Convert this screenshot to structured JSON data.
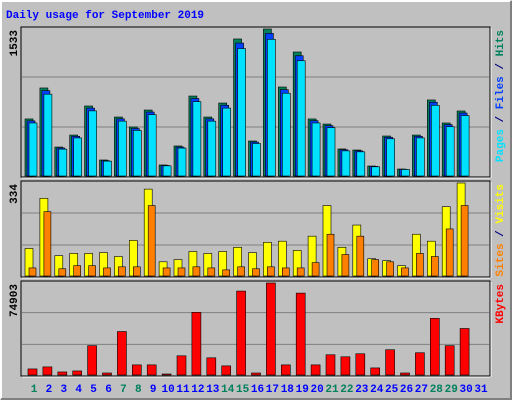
{
  "chart_data": [
    {
      "type": "bar",
      "title": "Daily usage for September 2019",
      "title_color": "#0000ff",
      "legend_separator": " / ",
      "ylim": [
        0,
        1533
      ],
      "yticks": [
        1533
      ],
      "series": [
        {
          "name": "Hits",
          "color": "#00805c",
          "values": [
            595,
            918,
            302,
            427,
            730,
            167,
            615,
            511,
            688,
            115,
            313,
            834,
            615,
            761,
            1429,
            365,
            1533,
            928,
            1293,
            595,
            542,
            282,
            271,
            104,
            417,
            73,
            427,
            793,
            553,
            678,
            0
          ]
        },
        {
          "name": "Files",
          "color": "#0040ff",
          "values": [
            575,
            890,
            292,
            414,
            708,
            160,
            596,
            495,
            667,
            110,
            302,
            808,
            596,
            738,
            1386,
            354,
            1487,
            900,
            1254,
            577,
            525,
            273,
            262,
            100,
            404,
            70,
            414,
            769,
            536,
            657,
            0
          ]
        },
        {
          "name": "Pages",
          "color": "#00e0ff",
          "values": [
            553,
            853,
            280,
            397,
            679,
            155,
            572,
            475,
            640,
            106,
            291,
            775,
            572,
            708,
            1329,
            339,
            1425,
            863,
            1202,
            553,
            504,
            262,
            252,
            96,
            388,
            68,
            397,
            737,
            514,
            630,
            0
          ]
        }
      ]
    },
    {
      "type": "bar",
      "legend_separator": " / ",
      "ylim": [
        0,
        334
      ],
      "yticks": [
        334
      ],
      "series": [
        {
          "name": "Visits",
          "color": "#ffff00",
          "values": [
            99,
            279,
            73,
            81,
            81,
            84,
            70,
            128,
            312,
            51,
            59,
            88,
            81,
            88,
            103,
            84,
            121,
            125,
            92,
            143,
            253,
            103,
            183,
            62,
            55,
            37,
            150,
            125,
            249,
            334,
            0
          ]
        },
        {
          "name": "Sites",
          "color": "#ff8000",
          "values": [
            29,
            231,
            26,
            37,
            37,
            29,
            33,
            33,
            253,
            29,
            29,
            33,
            29,
            22,
            33,
            26,
            33,
            29,
            29,
            48,
            150,
            77,
            143,
            59,
            51,
            29,
            81,
            70,
            169,
            253,
            0
          ]
        }
      ]
    },
    {
      "type": "bar",
      "ylim": [
        0,
        74903
      ],
      "yticks": [
        74903
      ],
      "categories": [
        "1",
        "2",
        "3",
        "4",
        "5",
        "6",
        "7",
        "8",
        "9",
        "10",
        "11",
        "12",
        "13",
        "14",
        "15",
        "16",
        "17",
        "18",
        "19",
        "20",
        "21",
        "22",
        "23",
        "24",
        "25",
        "26",
        "27",
        "28",
        "29",
        "30",
        "31"
      ],
      "category_colors": [
        "#00805c",
        "#0000ff",
        "#0000ff",
        "#0000ff",
        "#0000ff",
        "#0000ff",
        "#00805c",
        "#00805c",
        "#0000ff",
        "#0000ff",
        "#0000ff",
        "#0000ff",
        "#0000ff",
        "#00805c",
        "#00805c",
        "#0000ff",
        "#0000ff",
        "#0000ff",
        "#0000ff",
        "#0000ff",
        "#00805c",
        "#00805c",
        "#0000ff",
        "#0000ff",
        "#0000ff",
        "#0000ff",
        "#0000ff",
        "#00805c",
        "#00805c",
        "#0000ff",
        "#0000ff"
      ],
      "series": [
        {
          "name": "KBytes",
          "color": "#ff0000",
          "values": [
            4938,
            6585,
            2469,
            3292,
            23870,
            1646,
            35394,
            8231,
            8231,
            823,
            15640,
            51035,
            13993,
            7408,
            68322,
            1646,
            74903,
            8231,
            66676,
            8231,
            16463,
            14817,
            17286,
            5762,
            20579,
            1646,
            18110,
            46097,
            23871,
            37865,
            0
          ]
        }
      ]
    }
  ]
}
